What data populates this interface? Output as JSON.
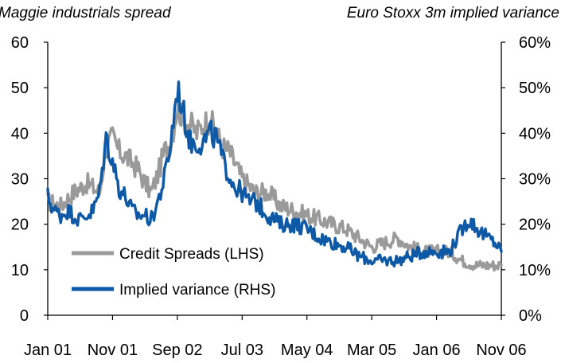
{
  "chart_data": {
    "type": "line",
    "left_axis_title": "Maggie industrials spread",
    "right_axis_title": "Euro Stoxx 3m implied variance",
    "x_ticks": [
      "Jan 01",
      "Nov 01",
      "Sep 02",
      "Jul 03",
      "May 04",
      "Mar 05",
      "Jan 06",
      "Nov 06"
    ],
    "ylim_left": [
      0,
      60
    ],
    "ylim_right": [
      0,
      60
    ],
    "y_ticks_left": [
      "0",
      "10",
      "20",
      "30",
      "40",
      "50",
      "60"
    ],
    "y_ticks_right": [
      "0%",
      "10%",
      "20%",
      "30%",
      "40%",
      "50%",
      "60%"
    ],
    "grid": false,
    "legend_position": "bottom-left",
    "series": [
      {
        "name": "Credit Spreads (LHS)",
        "axis": "left",
        "color": "#9a9a9a",
        "points": [
          [
            "Jan 01",
            25
          ],
          [
            "Mar 01",
            24
          ],
          [
            "May 01",
            27
          ],
          [
            "Jul 01",
            29
          ],
          [
            "Sep 01",
            27
          ],
          [
            "Oct 01",
            37
          ],
          [
            "Nov 01",
            39
          ],
          [
            "Dec 01",
            36
          ],
          [
            "Jan 02",
            35
          ],
          [
            "Mar 02",
            32
          ],
          [
            "Apr 02",
            29
          ],
          [
            "May 02",
            27
          ],
          [
            "Jun 02",
            31
          ],
          [
            "Jul 02",
            36
          ],
          [
            "Aug 02",
            38
          ],
          [
            "Sep 02",
            46
          ],
          [
            "Oct 02",
            43
          ],
          [
            "Nov 02",
            42
          ],
          [
            "Dec 02",
            40
          ],
          [
            "Jan 03",
            42
          ],
          [
            "Feb 03",
            43
          ],
          [
            "Mar 03",
            40
          ],
          [
            "Apr 03",
            37
          ],
          [
            "May 03",
            36
          ],
          [
            "Jul 03",
            30
          ],
          [
            "Sep 03",
            27
          ],
          [
            "Nov 03",
            27
          ],
          [
            "Jan 04",
            24
          ],
          [
            "Mar 04",
            23
          ],
          [
            "May 04",
            22
          ],
          [
            "Jul 04",
            21
          ],
          [
            "Sep 04",
            20
          ],
          [
            "Nov 04",
            19
          ],
          [
            "Jan 05",
            17
          ],
          [
            "Mar 05",
            15
          ],
          [
            "May 05",
            16
          ],
          [
            "Jul 05",
            17
          ],
          [
            "Sep 05",
            15
          ],
          [
            "Nov 05",
            14
          ],
          [
            "Jan 06",
            14
          ],
          [
            "Mar 06",
            14
          ],
          [
            "May 06",
            12
          ],
          [
            "Jul 06",
            11
          ],
          [
            "Sep 06",
            11
          ],
          [
            "Nov 06",
            11
          ]
        ]
      },
      {
        "name": "Implied variance (RHS)",
        "axis": "right",
        "color": "#0e59a6",
        "points": [
          [
            "Jan 01",
            26
          ],
          [
            "Feb 01",
            23
          ],
          [
            "Mar 01",
            22
          ],
          [
            "Apr 01",
            23
          ],
          [
            "May 01",
            22
          ],
          [
            "Jun 01",
            21
          ],
          [
            "Jul 01",
            22
          ],
          [
            "Aug 01",
            23
          ],
          [
            "Sep 01",
            27
          ],
          [
            "Oct 01",
            39
          ],
          [
            "Nov 01",
            34
          ],
          [
            "Dec 01",
            28
          ],
          [
            "Jan 02",
            26
          ],
          [
            "Feb 02",
            23
          ],
          [
            "Mar 02",
            22
          ],
          [
            "Apr 02",
            22
          ],
          [
            "May 02",
            21
          ],
          [
            "Jun 02",
            25
          ],
          [
            "Jul 02",
            30
          ],
          [
            "Aug 02",
            38
          ],
          [
            "Sep 02",
            50
          ],
          [
            "Oct 02",
            44
          ],
          [
            "Nov 02",
            38
          ],
          [
            "Dec 02",
            38
          ],
          [
            "Jan 03",
            38
          ],
          [
            "Feb 03",
            40
          ],
          [
            "Mar 03",
            39
          ],
          [
            "Apr 03",
            34
          ],
          [
            "May 03",
            31
          ],
          [
            "Jun 03",
            28
          ],
          [
            "Jul 03",
            27
          ],
          [
            "Aug 03",
            25
          ],
          [
            "Sep 03",
            25
          ],
          [
            "Nov 03",
            22
          ],
          [
            "Jan 04",
            20
          ],
          [
            "Mar 04",
            20
          ],
          [
            "May 04",
            19
          ],
          [
            "Jul 04",
            17
          ],
          [
            "Sep 04",
            16
          ],
          [
            "Nov 04",
            15
          ],
          [
            "Jan 05",
            13
          ],
          [
            "Mar 05",
            12
          ],
          [
            "May 05",
            12
          ],
          [
            "Jul 05",
            12
          ],
          [
            "Sep 05",
            13
          ],
          [
            "Nov 05",
            14
          ],
          [
            "Jan 06",
            14
          ],
          [
            "Mar 06",
            14
          ],
          [
            "May 06",
            19
          ],
          [
            "Jun 06",
            21
          ],
          [
            "Aug 06",
            18
          ],
          [
            "Oct 06",
            16
          ],
          [
            "Nov 06",
            14
          ]
        ]
      }
    ]
  }
}
